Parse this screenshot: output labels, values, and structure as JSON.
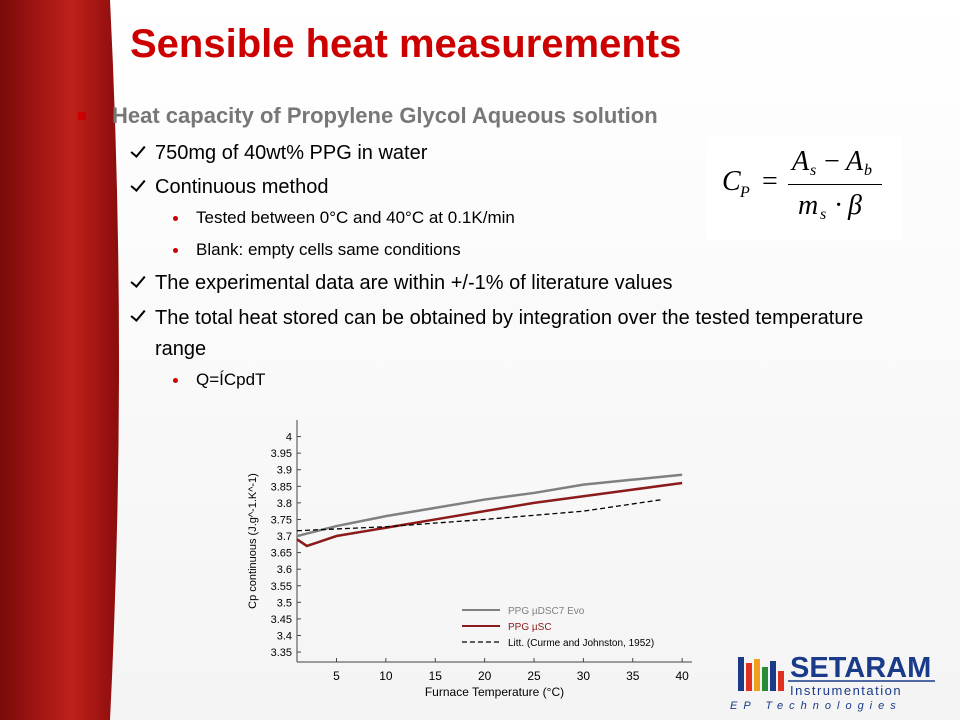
{
  "slide": {
    "title": "Sensible heat measurements",
    "bullet": "Heat capacity of Propylene Glycol Aqueous solution",
    "items": [
      {
        "text": "750mg of 40wt% PPG in water"
      },
      {
        "text": "Continuous method",
        "sub": [
          "Tested between 0°C and 40°C at 0.1K/min",
          "Blank: empty cells same conditions"
        ]
      },
      {
        "text": "The experimental data are within +/-1% of literature values"
      },
      {
        "text": "The total heat stored can be obtained by integration over the tested temperature range",
        "sub": [
          "Q=ÍCpdT"
        ]
      }
    ],
    "formula": {
      "lhs": "C",
      "lhs_sub": "P",
      "eq": "=",
      "a1": "A",
      "a1_sub": "s",
      "minus": "−",
      "a2": "A",
      "a2_sub": "b",
      "m": "m",
      "m_sub": "s",
      "dot": "·",
      "beta": "β"
    },
    "logo": {
      "name": "SETARAM",
      "tagline": "Instrumentation",
      "footer": "EP Technologies"
    }
  },
  "chart_data": {
    "type": "line",
    "x_label": "Furnace Temperature (°C)",
    "y_label": "Cp continuous (J.g^-1.K^-1)",
    "xlim": [
      1,
      41
    ],
    "ylim": [
      3.32,
      4.05
    ],
    "xticks": [
      5,
      10,
      15,
      20,
      25,
      30,
      35,
      40
    ],
    "yticks": [
      4,
      3.95,
      3.9,
      3.85,
      3.8,
      3.75,
      3.7,
      3.65,
      3.6,
      3.55,
      3.5,
      3.45,
      3.4,
      3.35
    ],
    "series": [
      {
        "name": "PPG µDSC7 Evo",
        "color": "#808080",
        "dash": false,
        "x": [
          1,
          3,
          5,
          10,
          15,
          20,
          25,
          30,
          35,
          40
        ],
        "values": [
          3.7,
          3.715,
          3.73,
          3.76,
          3.785,
          3.81,
          3.83,
          3.855,
          3.87,
          3.885
        ]
      },
      {
        "name": "PPG µSC",
        "color": "#8b1a1a",
        "dash": false,
        "x": [
          1,
          2,
          3,
          5,
          10,
          15,
          20,
          25,
          30,
          35,
          40
        ],
        "values": [
          3.69,
          3.67,
          3.68,
          3.7,
          3.725,
          3.75,
          3.775,
          3.8,
          3.82,
          3.84,
          3.86
        ]
      },
      {
        "name": "Litt. (Curme and Johnston, 1952)",
        "color": "#000000",
        "dash": true,
        "x": [
          1,
          10,
          20,
          30,
          38
        ],
        "values": [
          3.716,
          3.728,
          3.75,
          3.775,
          3.81
        ]
      }
    ]
  }
}
